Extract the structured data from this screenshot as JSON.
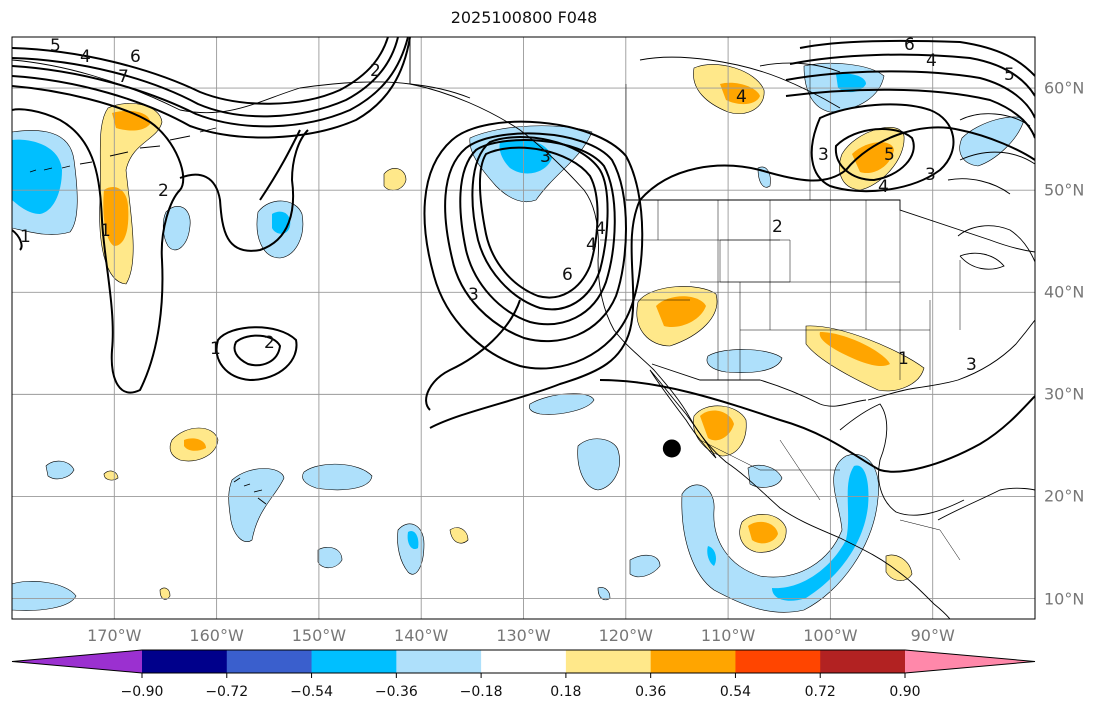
{
  "title": "2025100800 F048",
  "longitude_labels": [
    "170°W",
    "160°W",
    "150°W",
    "140°W",
    "130°W",
    "120°W",
    "110°W",
    "100°W",
    "90°W"
  ],
  "latitude_labels": [
    "60°N",
    "50°N",
    "40°N",
    "30°N",
    "20°N",
    "10°N"
  ],
  "colorbar": {
    "tick_labels": [
      "−0.90",
      "−0.72",
      "−0.54",
      "−0.36",
      "−0.18",
      "0.18",
      "0.36",
      "0.54",
      "0.72",
      "0.90"
    ],
    "colors": [
      "#9b30d0",
      "#00008b",
      "#3a5fcd",
      "#00bfff",
      "#aee0fb",
      "#ffffff",
      "#ffe88a",
      "#ffa500",
      "#ff4500",
      "#b22222",
      "#ff88aa"
    ]
  },
  "contour_labels": [
    "5",
    "4",
    "6",
    "7",
    "2",
    "1",
    "1",
    "2",
    "1",
    "2",
    "3",
    "4",
    "6",
    "4",
    "3",
    "2",
    "1",
    "6",
    "5",
    "4",
    "3",
    "5",
    "4",
    "3",
    "4",
    "3"
  ],
  "map": {
    "lon_range": [
      -180,
      -80
    ],
    "lat_range": [
      8,
      65
    ],
    "shading_colors": {
      "pos_light": "#ffe88a",
      "pos_mid": "#ffa500",
      "neg_light": "#aee0fb",
      "neg_mid": "#00bfff"
    },
    "marker": {
      "lon": -115.5,
      "lat": 24.7,
      "color": "#000000"
    }
  }
}
